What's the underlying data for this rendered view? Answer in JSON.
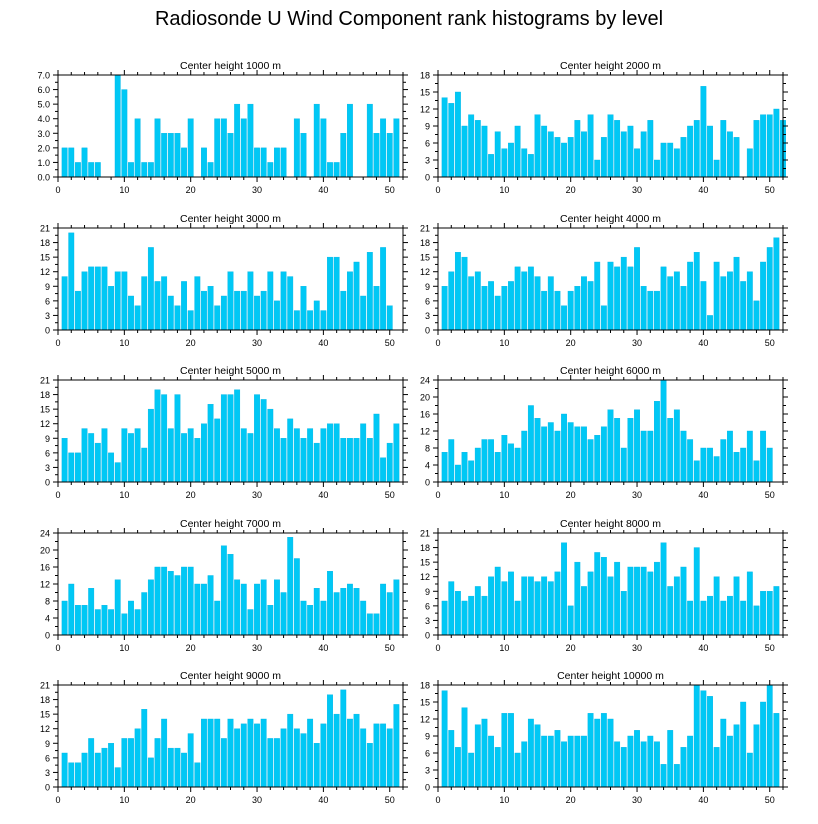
{
  "title": "Radiosonde U Wind Component rank histograms by level",
  "colors": {
    "bar": "#00C8F5",
    "bar_edge": "#00B4E6",
    "axis": "#000000"
  },
  "chart_data": [
    {
      "type": "bar",
      "title": "Center height 1000 m",
      "xlim": [
        0,
        52
      ],
      "ylim": [
        0,
        7
      ],
      "yticks": [
        0.0,
        1.0,
        2.0,
        3.0,
        4.0,
        5.0,
        6.0,
        7.0
      ],
      "ytick_labels": [
        "0.0",
        "1.0",
        "2.0",
        "3.0",
        "4.0",
        "5.0",
        "6.0",
        "7.0"
      ],
      "xticks": [
        0,
        10,
        20,
        30,
        40,
        50
      ],
      "values": [
        2,
        2,
        1,
        2,
        1,
        1,
        0,
        0,
        7,
        6,
        1,
        4,
        1,
        1,
        4,
        3,
        3,
        3,
        2,
        4,
        0,
        2,
        1,
        4,
        4,
        3,
        5,
        4,
        5,
        2,
        2,
        1,
        2,
        2,
        0,
        4,
        3,
        0,
        5,
        4,
        1,
        1,
        3,
        5,
        0,
        0,
        5,
        3,
        4,
        3,
        4
      ]
    },
    {
      "type": "bar",
      "title": "Center height 2000 m",
      "xlim": [
        0,
        52
      ],
      "ylim": [
        0,
        18
      ],
      "yticks": [
        0,
        3,
        6,
        9,
        12,
        15,
        18
      ],
      "ytick_labels": [
        "0",
        "3",
        "6",
        "9",
        "12",
        "15",
        "18"
      ],
      "xticks": [
        0,
        10,
        20,
        30,
        40,
        50
      ],
      "values": [
        14,
        13,
        15,
        9,
        11,
        10,
        9,
        4,
        8,
        5,
        6,
        9,
        5,
        4,
        11,
        9,
        8,
        7,
        6,
        7,
        10,
        8,
        11,
        3,
        7,
        11,
        10,
        8,
        9,
        5,
        8,
        10,
        3,
        6,
        6,
        5,
        7,
        9,
        10,
        16,
        9,
        3,
        10,
        8,
        7,
        0,
        5,
        10,
        11,
        11,
        12,
        10
      ]
    },
    {
      "type": "bar",
      "title": "Center height 3000 m",
      "xlim": [
        0,
        52
      ],
      "ylim": [
        0,
        21
      ],
      "yticks": [
        0,
        3,
        6,
        9,
        12,
        15,
        18,
        21
      ],
      "ytick_labels": [
        "0",
        "3",
        "6",
        "9",
        "12",
        "15",
        "18",
        "21"
      ],
      "xticks": [
        0,
        10,
        20,
        30,
        40,
        50
      ],
      "values": [
        11,
        20,
        8,
        12,
        13,
        13,
        13,
        9,
        12,
        12,
        7,
        5,
        11,
        17,
        10,
        11,
        7,
        5,
        10,
        4,
        11,
        8,
        9,
        5,
        7,
        12,
        8,
        8,
        12,
        7,
        8,
        12,
        6,
        12,
        11,
        4,
        9,
        4,
        6,
        4,
        15,
        15,
        8,
        12,
        14,
        7,
        16,
        9,
        17,
        5
      ]
    },
    {
      "type": "bar",
      "title": "Center height 4000 m",
      "xlim": [
        0,
        52
      ],
      "ylim": [
        0,
        21
      ],
      "yticks": [
        0,
        3,
        6,
        9,
        12,
        15,
        18,
        21
      ],
      "ytick_labels": [
        "0",
        "3",
        "6",
        "9",
        "12",
        "15",
        "18",
        "21"
      ],
      "xticks": [
        0,
        10,
        20,
        30,
        40,
        50
      ],
      "values": [
        9,
        12,
        16,
        15,
        11,
        12,
        9,
        10,
        7,
        9,
        10,
        13,
        12,
        13,
        11,
        8,
        11,
        8,
        5,
        8,
        9,
        11,
        10,
        14,
        5,
        14,
        13,
        15,
        13,
        17,
        9,
        8,
        8,
        13,
        11,
        12,
        9,
        14,
        16,
        10,
        3,
        14,
        11,
        12,
        15,
        10,
        12,
        6,
        14,
        17,
        19
      ]
    },
    {
      "type": "bar",
      "title": "Center height 5000 m",
      "xlim": [
        0,
        52
      ],
      "ylim": [
        0,
        21
      ],
      "yticks": [
        0,
        3,
        6,
        9,
        12,
        15,
        18,
        21
      ],
      "ytick_labels": [
        "0",
        "3",
        "6",
        "9",
        "12",
        "15",
        "18",
        "21"
      ],
      "xticks": [
        0,
        10,
        20,
        30,
        40,
        50
      ],
      "values": [
        9,
        6,
        6,
        11,
        10,
        8,
        11,
        6,
        4,
        11,
        10,
        11,
        7,
        15,
        19,
        18,
        11,
        18,
        10,
        11,
        9,
        12,
        16,
        13,
        18,
        18,
        19,
        11,
        10,
        18,
        17,
        15,
        11,
        9,
        13,
        11,
        9,
        11,
        8,
        11,
        12,
        12,
        9,
        9,
        9,
        12,
        9,
        14,
        5,
        8,
        12
      ]
    },
    {
      "type": "bar",
      "title": "Center height 6000 m",
      "xlim": [
        0,
        52
      ],
      "ylim": [
        0,
        24
      ],
      "yticks": [
        0,
        4,
        8,
        12,
        16,
        20,
        24
      ],
      "ytick_labels": [
        "0",
        "4",
        "8",
        "12",
        "16",
        "20",
        "24"
      ],
      "xticks": [
        0,
        10,
        20,
        30,
        40,
        50
      ],
      "values": [
        7,
        10,
        4,
        7,
        5,
        8,
        10,
        10,
        7,
        11,
        9,
        8,
        12,
        18,
        15,
        13,
        14,
        12,
        16,
        14,
        13,
        13,
        10,
        11,
        13,
        17,
        15,
        8,
        15,
        17,
        12,
        12,
        19,
        24,
        15,
        17,
        12,
        10,
        5,
        8,
        8,
        6,
        10,
        12,
        7,
        8,
        12,
        5,
        12,
        8
      ]
    },
    {
      "type": "bar",
      "title": "Center height 7000 m",
      "xlim": [
        0,
        52
      ],
      "ylim": [
        0,
        24
      ],
      "yticks": [
        0,
        4,
        8,
        12,
        16,
        20,
        24
      ],
      "ytick_labels": [
        "0",
        "4",
        "8",
        "12",
        "16",
        "20",
        "24"
      ],
      "xticks": [
        0,
        10,
        20,
        30,
        40,
        50
      ],
      "values": [
        8,
        12,
        7,
        7,
        11,
        6,
        7,
        6,
        13,
        5,
        8,
        6,
        10,
        13,
        16,
        16,
        15,
        14,
        16,
        16,
        12,
        12,
        14,
        8,
        21,
        19,
        13,
        12,
        6,
        12,
        13,
        7,
        13,
        10,
        23,
        18,
        8,
        7,
        11,
        8,
        15,
        10,
        11,
        12,
        11,
        8,
        5,
        5,
        12,
        10,
        13
      ]
    },
    {
      "type": "bar",
      "title": "Center height 8000 m",
      "xlim": [
        0,
        52
      ],
      "ylim": [
        0,
        21
      ],
      "yticks": [
        0,
        3,
        6,
        9,
        12,
        15,
        18,
        21
      ],
      "ytick_labels": [
        "0",
        "3",
        "6",
        "9",
        "12",
        "15",
        "18",
        "21"
      ],
      "xticks": [
        0,
        10,
        20,
        30,
        40,
        50
      ],
      "values": [
        7,
        11,
        9,
        7,
        8,
        10,
        8,
        12,
        14,
        11,
        13,
        7,
        12,
        12,
        11,
        12,
        11,
        13,
        19,
        6,
        15,
        10,
        13,
        17,
        16,
        12,
        15,
        9,
        14,
        14,
        14,
        13,
        15,
        19,
        10,
        12,
        14,
        7,
        18,
        7,
        8,
        12,
        7,
        8,
        12,
        7,
        13,
        6,
        9,
        9,
        10
      ]
    },
    {
      "type": "bar",
      "title": "Center height 9000 m",
      "xlim": [
        0,
        52
      ],
      "ylim": [
        0,
        21
      ],
      "yticks": [
        0,
        3,
        6,
        9,
        12,
        15,
        18,
        21
      ],
      "ytick_labels": [
        "0",
        "3",
        "6",
        "9",
        "12",
        "15",
        "18",
        "21"
      ],
      "xticks": [
        0,
        10,
        20,
        30,
        40,
        50
      ],
      "values": [
        7,
        5,
        5,
        7,
        10,
        7,
        8,
        9,
        4,
        10,
        10,
        12,
        16,
        6,
        10,
        14,
        8,
        8,
        7,
        11,
        5,
        14,
        14,
        14,
        10,
        14,
        12,
        13,
        14,
        13,
        14,
        10,
        10,
        12,
        15,
        12,
        11,
        14,
        9,
        13,
        19,
        15,
        20,
        14,
        15,
        12,
        9,
        13,
        13,
        12,
        17
      ]
    },
    {
      "type": "bar",
      "title": "Center height 10000 m",
      "xlim": [
        0,
        52
      ],
      "ylim": [
        0,
        18
      ],
      "yticks": [
        0,
        3,
        6,
        9,
        12,
        15,
        18
      ],
      "ytick_labels": [
        "0",
        "3",
        "6",
        "9",
        "12",
        "15",
        "18"
      ],
      "xticks": [
        0,
        10,
        20,
        30,
        40,
        50
      ],
      "values": [
        17,
        10,
        7,
        14,
        6,
        11,
        12,
        9,
        7,
        13,
        13,
        6,
        8,
        12,
        11,
        9,
        9,
        10,
        8,
        9,
        9,
        9,
        13,
        12,
        13,
        12,
        8,
        7,
        9,
        10,
        8,
        9,
        8,
        4,
        10,
        4,
        7,
        9,
        18,
        17,
        16,
        7,
        12,
        9,
        11,
        15,
        6,
        11,
        15,
        18,
        13
      ]
    }
  ]
}
